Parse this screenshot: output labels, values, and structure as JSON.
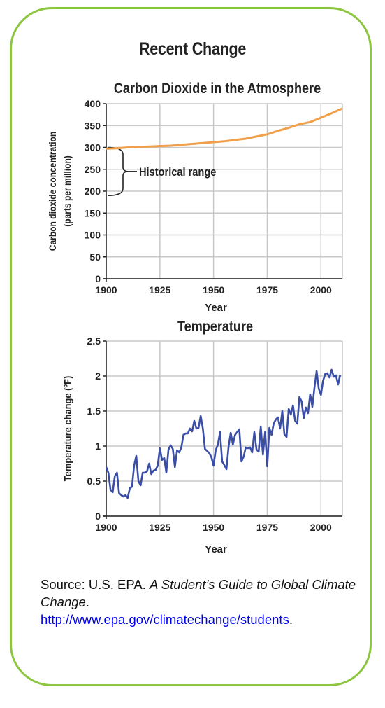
{
  "title": "Recent Change",
  "colors": {
    "frame": "#8cc63f",
    "co2_line": "#f0a04b",
    "temp_line": "#3a4ea8",
    "grid": "#c8c8c8"
  },
  "chart_data": [
    {
      "type": "line",
      "title": "Carbon Dioxide in the Atmosphere",
      "xlabel": "Year",
      "ylabel": "Carbon dioxide concentration",
      "ylabel_units": "(parts per million)",
      "xlim": [
        1900,
        2010
      ],
      "ylim": [
        0,
        400
      ],
      "xticks": [
        1900,
        1925,
        1950,
        1975,
        2000
      ],
      "yticks": [
        0,
        50,
        100,
        150,
        200,
        250,
        300,
        350,
        400
      ],
      "grid": true,
      "annotation": "Historical range",
      "annotation_range": [
        190,
        300
      ],
      "series": [
        {
          "x": [
            1900,
            1905,
            1910,
            1915,
            1920,
            1925,
            1930,
            1935,
            1940,
            1945,
            1950,
            1955,
            1960,
            1965,
            1970,
            1975,
            1980,
            1985,
            1990,
            1995,
            2000,
            2005,
            2010
          ],
          "values": [
            297,
            298,
            300,
            301,
            302,
            303,
            304,
            306,
            308,
            310,
            312,
            314,
            317,
            320,
            325,
            330,
            338,
            345,
            353,
            358,
            368,
            378,
            389
          ]
        }
      ]
    },
    {
      "type": "line",
      "title": "Temperature",
      "xlabel": "Year",
      "ylabel": "Temperature change (ºF)",
      "xlim": [
        1900,
        2010
      ],
      "ylim": [
        0,
        2.5
      ],
      "xticks": [
        1900,
        1925,
        1950,
        1975,
        2000
      ],
      "yticks": [
        "0",
        "0.5",
        "1",
        "1.5",
        "2",
        "2.5"
      ],
      "ytick_values": [
        0,
        0.5,
        1,
        1.5,
        2,
        2.5
      ],
      "grid": true,
      "series": [
        {
          "x": [
            1900,
            1901,
            1902,
            1903,
            1904,
            1905,
            1906,
            1907,
            1908,
            1909,
            1910,
            1911,
            1912,
            1913,
            1914,
            1915,
            1916,
            1917,
            1918,
            1919,
            1920,
            1921,
            1922,
            1923,
            1924,
            1925,
            1926,
            1927,
            1928,
            1929,
            1930,
            1931,
            1932,
            1933,
            1934,
            1935,
            1936,
            1937,
            1938,
            1939,
            1940,
            1941,
            1942,
            1943,
            1944,
            1945,
            1946,
            1947,
            1948,
            1949,
            1950,
            1951,
            1952,
            1953,
            1954,
            1955,
            1956,
            1957,
            1958,
            1959,
            1960,
            1961,
            1962,
            1963,
            1964,
            1965,
            1966,
            1967,
            1968,
            1969,
            1970,
            1971,
            1972,
            1973,
            1974,
            1975,
            1976,
            1977,
            1978,
            1979,
            1980,
            1981,
            1982,
            1983,
            1984,
            1985,
            1986,
            1987,
            1988,
            1989,
            1990,
            1991,
            1992,
            1993,
            1994,
            1995,
            1996,
            1997,
            1998,
            1999,
            2000,
            2001,
            2002,
            2003,
            2004,
            2005,
            2006,
            2007,
            2008,
            2009
          ],
          "values": [
            0.7,
            0.62,
            0.38,
            0.34,
            0.57,
            0.62,
            0.33,
            0.3,
            0.28,
            0.3,
            0.26,
            0.4,
            0.42,
            0.72,
            0.86,
            0.5,
            0.44,
            0.62,
            0.62,
            0.64,
            0.75,
            0.6,
            0.65,
            0.66,
            0.72,
            0.97,
            0.8,
            0.83,
            0.62,
            0.95,
            1.01,
            0.96,
            0.7,
            0.94,
            0.91,
            0.98,
            1.16,
            1.18,
            1.18,
            1.25,
            1.21,
            1.36,
            1.25,
            1.26,
            1.43,
            1.25,
            0.96,
            0.93,
            0.9,
            0.84,
            0.72,
            0.94,
            1.02,
            1.2,
            0.78,
            0.73,
            0.67,
            0.99,
            1.19,
            1.02,
            1.16,
            1.2,
            1.24,
            0.78,
            0.85,
            0.98,
            0.97,
            0.98,
            0.91,
            1.2,
            0.95,
            0.92,
            1.28,
            0.88,
            1.2,
            0.71,
            1.26,
            1.16,
            1.32,
            1.38,
            1.41,
            1.25,
            1.5,
            1.17,
            1.13,
            1.53,
            1.45,
            1.58,
            1.36,
            1.32,
            1.7,
            1.64,
            1.4,
            1.55,
            1.47,
            1.74,
            1.56,
            1.84,
            2.07,
            1.82,
            1.73,
            1.93,
            2.03,
            2.04,
            1.98,
            2.09,
            1.99,
            2.01,
            1.88,
            2.02
          ]
        }
      ]
    }
  ],
  "source": {
    "prefix": "Source: U.S. EPA. ",
    "title_italic": "A Student’s Guide to Global Climate Change",
    "period": ".",
    "link": "http://www.epa.gov/climatechange/students",
    "link_trailing": "."
  }
}
